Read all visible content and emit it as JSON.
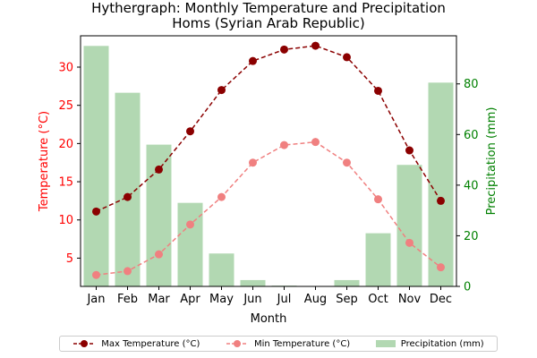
{
  "title_line1": "Hythergraph: Monthly Temperature and Precipitation",
  "title_line2": "Homs (Syrian Arab Republic)",
  "chart_data": {
    "type": "bar+line",
    "categories": [
      "Jan",
      "Feb",
      "Mar",
      "Apr",
      "May",
      "Jun",
      "Jul",
      "Aug",
      "Sep",
      "Oct",
      "Nov",
      "Dec"
    ],
    "xlabel": "Month",
    "ylabel_left": "Temperature (°C)",
    "ylabel_right": "Precipitation (mm)",
    "ylim_left": [
      1.3,
      34.1
    ],
    "ylim_right": [
      0,
      99
    ],
    "yticks_left": [
      5,
      10,
      15,
      20,
      25,
      30
    ],
    "yticks_right": [
      0,
      20,
      40,
      60,
      80
    ],
    "series": [
      {
        "name": "Max Temperature (°C)",
        "axis": "left",
        "style": "line-dashed-marker",
        "color": "#8b0000",
        "values": [
          11.1,
          13.0,
          16.6,
          21.6,
          27.0,
          30.8,
          32.3,
          32.8,
          31.3,
          26.9,
          19.1,
          12.5
        ]
      },
      {
        "name": "Min Temperature (°C)",
        "axis": "left",
        "style": "line-dashed-marker",
        "color": "#f08080",
        "values": [
          2.8,
          3.3,
          5.5,
          9.4,
          13.0,
          17.5,
          19.8,
          20.2,
          17.5,
          12.7,
          7.0,
          3.8
        ]
      },
      {
        "name": "Precipitation (mm)",
        "axis": "right",
        "style": "bar",
        "color": "#b2d8b2",
        "values": [
          95,
          76.5,
          56,
          33,
          13,
          2.5,
          0.3,
          0,
          2.5,
          21,
          48,
          80.5
        ]
      }
    ],
    "legend_position": "bottom-center",
    "grid": false
  }
}
